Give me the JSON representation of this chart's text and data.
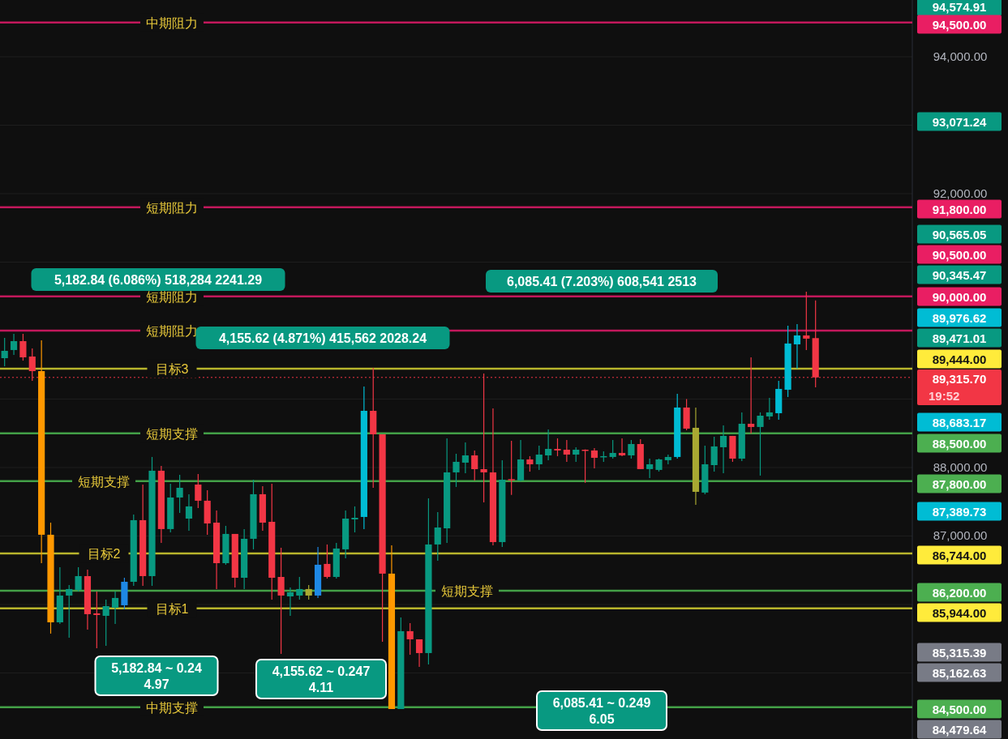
{
  "chart_data": {
    "type": "candlestick",
    "categories": [
      null,
      null,
      null,
      null,
      null,
      null,
      null,
      null,
      null,
      null,
      null,
      null,
      null,
      null,
      null,
      null,
      null,
      null,
      null,
      null,
      null,
      null,
      null,
      null,
      null,
      null,
      null,
      null,
      null,
      null,
      null,
      null,
      null,
      null,
      null,
      null,
      null,
      null,
      null,
      null,
      null,
      null,
      null,
      null,
      null,
      null,
      null,
      null,
      null,
      null,
      null,
      null,
      null,
      null,
      null,
      null,
      null,
      null,
      null,
      null,
      null,
      null,
      null,
      null,
      null,
      null,
      null,
      null,
      null,
      null,
      null,
      null,
      null,
      null,
      null,
      null,
      null,
      null,
      null,
      null,
      null,
      null,
      null,
      null,
      null,
      null,
      null,
      null,
      null,
      null,
      null,
      null,
      null,
      null,
      null,
      null,
      null,
      null,
      null
    ],
    "ohlc": [
      [
        89597,
        89893,
        89479,
        89704
      ],
      [
        89716,
        89952,
        89645,
        89846
      ],
      [
        89846,
        89952,
        89562,
        89609
      ],
      [
        89621,
        89739,
        89266,
        89408
      ],
      [
        89408,
        89858,
        86603,
        87018
      ],
      [
        87018,
        87195,
        85574,
        85739
      ],
      [
        85739,
        86544,
        85715,
        86130
      ],
      [
        86130,
        86284,
        85515,
        86225
      ],
      [
        86213,
        86544,
        86189,
        86414
      ],
      [
        86414,
        86509,
        85633,
        85858
      ],
      [
        85870,
        86189,
        85361,
        85846
      ],
      [
        85834,
        86071,
        85396,
        85976
      ],
      [
        85953,
        86189,
        85716,
        86095
      ],
      [
        85988,
        86390,
        85929,
        86331
      ],
      [
        86331,
        87314,
        86272,
        87231
      ],
      [
        87231,
        87751,
        86272,
        86414
      ],
      [
        86414,
        88154,
        86272,
        87953
      ],
      [
        87953,
        88024,
        86899,
        87101
      ],
      [
        87101,
        87763,
        87053,
        87562
      ],
      [
        87562,
        87893,
        87337,
        87704
      ],
      [
        87254,
        87610,
        87077,
        87432
      ],
      [
        87751,
        87905,
        87408,
        87515
      ],
      [
        87515,
        87669,
        87018,
        87183
      ],
      [
        87195,
        87373,
        86225,
        86603
      ],
      [
        86603,
        87148,
        86580,
        87030
      ],
      [
        87030,
        87030,
        86248,
        86390
      ],
      [
        86390,
        87101,
        86225,
        86959
      ],
      [
        86959,
        87822,
        86805,
        87610
      ],
      [
        87610,
        87728,
        87077,
        87195
      ],
      [
        87207,
        87763,
        86071,
        86390
      ],
      [
        86402,
        86828,
        85278,
        86130
      ],
      [
        86118,
        86249,
        85834,
        86177
      ],
      [
        86130,
        86402,
        86071,
        86225
      ],
      [
        86130,
        86284,
        86071,
        86225
      ],
      [
        86130,
        86840,
        86095,
        86580
      ],
      [
        86592,
        86876,
        86378,
        86402
      ],
      [
        86402,
        86899,
        86378,
        86817
      ],
      [
        86805,
        87373,
        86675,
        87254
      ],
      [
        87242,
        87432,
        87053,
        87266
      ],
      [
        87278,
        89183,
        87101,
        88828
      ],
      [
        88828,
        89456,
        87704,
        88485
      ],
      [
        88485,
        88485,
        85456,
        86450
      ],
      [
        86450,
        86864,
        84473,
        84473
      ],
      [
        84473,
        85811,
        84473,
        85610
      ],
      [
        85610,
        85728,
        85266,
        85491
      ],
      [
        85491,
        85491,
        85089,
        85290
      ],
      [
        85290,
        87550,
        85124,
        86876
      ],
      [
        86876,
        87349,
        86639,
        87124
      ],
      [
        87112,
        88426,
        86899,
        87929
      ],
      [
        87929,
        88201,
        87716,
        88083
      ],
      [
        88071,
        88367,
        87917,
        88177
      ],
      [
        88177,
        88249,
        87811,
        87976
      ],
      [
        87976,
        89373,
        87491,
        87929
      ],
      [
        87929,
        88864,
        86864,
        86911
      ],
      [
        86911,
        88107,
        86840,
        87822
      ],
      [
        87830,
        88390,
        87600,
        87820
      ],
      [
        87811,
        88402,
        87800,
        88118
      ],
      [
        88118,
        88166,
        87940,
        88047
      ],
      [
        88047,
        88320,
        87965,
        88189
      ],
      [
        88177,
        88556,
        88107,
        88272
      ],
      [
        88272,
        88426,
        88166,
        88249
      ],
      [
        88260,
        88402,
        88083,
        88189
      ],
      [
        88189,
        88296,
        88083,
        88260
      ],
      [
        88260,
        88265,
        87776,
        88250
      ],
      [
        88249,
        88284,
        87988,
        88142
      ],
      [
        88160,
        88237,
        88083,
        88166
      ],
      [
        88154,
        88402,
        88130,
        88213
      ],
      [
        88213,
        88426,
        88166,
        88177
      ],
      [
        88177,
        88402,
        88130,
        88343
      ],
      [
        88343,
        88414,
        87977,
        87977
      ],
      [
        87977,
        88130,
        87846,
        88047
      ],
      [
        87965,
        88130,
        87941,
        88118
      ],
      [
        88107,
        88189,
        88047,
        88154
      ],
      [
        88154,
        89075,
        88130,
        88876
      ],
      [
        88876,
        89000,
        88544,
        88568
      ],
      [
        88580,
        88876,
        87456,
        87645
      ],
      [
        87634,
        88320,
        87610,
        88047
      ],
      [
        88035,
        88450,
        87941,
        88308
      ],
      [
        88296,
        88616,
        87917,
        88462
      ],
      [
        88462,
        88462,
        88083,
        88130
      ],
      [
        88130,
        88805,
        88095,
        88639
      ],
      [
        88639,
        89610,
        88497,
        88592
      ],
      [
        88592,
        88805,
        87882,
        88757
      ],
      [
        88746,
        89018,
        88698,
        88805
      ],
      [
        88793,
        89266,
        88698,
        89148
      ],
      [
        89136,
        90071,
        89030,
        89811
      ],
      [
        89799,
        90095,
        89444,
        89929
      ],
      [
        89929,
        90568,
        89716,
        89882
      ],
      [
        89890,
        90440,
        89170,
        89316
      ],
      null,
      null,
      null,
      null,
      null,
      null,
      null,
      null,
      null,
      null
    ],
    "colors": [
      "#089981",
      "#089981",
      "#f23645",
      "#f23645",
      "#ff9800",
      "#ff9800",
      "#089981",
      "#089981",
      "#089981",
      "#f23645",
      "#f23645",
      "#089981",
      "#089981",
      "#1e88e5",
      "#089981",
      "#f23645",
      "#089981",
      "#f23645",
      "#089981",
      "#089981",
      "#089981",
      "#f23645",
      "#f23645",
      "#f23645",
      "#089981",
      "#f23645",
      "#089981",
      "#089981",
      "#f23645",
      "#f23645",
      "#f23645",
      "#089981",
      "#089981",
      "#a8a832",
      "#1e88e5",
      "#f23645",
      "#089981",
      "#089981",
      "#089981",
      "#00bcd4",
      "#f23645",
      "#f23645",
      "#ff9800",
      "#089981",
      "#f23645",
      "#f23645",
      "#089981",
      "#089981",
      "#089981",
      "#089981",
      "#089981",
      "#f23645",
      "#f23645",
      "#f23645",
      "#089981",
      "#f23645",
      "#089981",
      "#f23645",
      "#089981",
      "#089981",
      "#f23645",
      "#f23645",
      "#089981",
      "#f23645",
      "#f23645",
      "#089981",
      "#089981",
      "#f23645",
      "#089981",
      "#f23645",
      "#089981",
      "#089981",
      "#089981",
      "#00bcd4",
      "#f23645",
      "#a8a832",
      "#089981",
      "#089981",
      "#089981",
      "#f23645",
      "#089981",
      "#f23645",
      "#089981",
      "#089981",
      "#00bcd4",
      "#00bcd4",
      "#00bcd4",
      "#f23645",
      "#f23645",
      null,
      null,
      null,
      null,
      null,
      null,
      null,
      null,
      null,
      null
    ],
    "ylim": [
      84035,
      94828
    ],
    "yticks": [
      {
        "value": 85000,
        "label": null
      },
      {
        "value": 86000,
        "label": null
      },
      {
        "value": 87000,
        "label": "87,000.00"
      },
      {
        "value": 88000,
        "label": "88,000.00"
      },
      {
        "value": 89000,
        "label": null
      },
      {
        "value": 90000,
        "label": null
      },
      {
        "value": 91000,
        "label": null
      },
      {
        "value": 92000,
        "label": "92,000.00"
      },
      {
        "value": 93000,
        "label": null
      },
      {
        "value": 94000,
        "label": "94,000.00"
      }
    ],
    "grid": "y",
    "ref_lines": [
      {
        "axis": "y",
        "value": 94500,
        "label": "中期阻力",
        "color": "#c2185b"
      },
      {
        "axis": "y",
        "value": 91800,
        "label": "短期阻力",
        "color": "#c2185b"
      },
      {
        "axis": "y",
        "value": 90500,
        "label": "短期阻力",
        "color": "#c2185b"
      },
      {
        "axis": "y",
        "value": 90000,
        "label": "短期阻力",
        "color": "#c2185b"
      },
      {
        "axis": "y",
        "value": 89444,
        "label": "目标3",
        "color": "#b8b52c"
      },
      {
        "axis": "y",
        "value": 89315.7,
        "label": null,
        "color": "#f23645",
        "line_style": "dotted"
      },
      {
        "axis": "y",
        "value": 88500,
        "label": "短期支撑",
        "color": "#43a047"
      },
      {
        "axis": "y",
        "value": 87800,
        "label": "短期支撑",
        "color": "#43a047"
      },
      {
        "axis": "y",
        "value": 86744,
        "label": "目标2",
        "color": "#b8b52c"
      },
      {
        "axis": "y",
        "value": 86200,
        "label": "短期支撑",
        "color": "#43a047"
      },
      {
        "axis": "y",
        "value": 85944,
        "label": "目标1",
        "color": "#b8b52c"
      },
      {
        "axis": "y",
        "value": 84500,
        "label": "中期支撑",
        "color": "#43a047"
      }
    ],
    "annotations": [
      "5,182.84 (6.086%) 518,284 2241.29",
      "4,155.62 (4.871%) 415,562 2028.24",
      "6,085.41 (7.203%) 608,541 2513",
      "5,182.84 ~ 0.24\n4.97",
      "4,155.62 ~ 0.247\n4.11",
      "6,085.41 ~ 0.249\n6.05",
      "94,574.91",
      "94,500.00",
      "93,071.24",
      "91,800.00",
      "90,565.05",
      "90,500.00",
      "90,345.47",
      "90,000.00",
      "89,976.62",
      "89,471.01",
      "89,444.00",
      "89,315.70",
      "19:52",
      "88,683.17",
      "88,500.00",
      "87,800.00",
      "87,389.73",
      "86,744.00",
      "86,200.00",
      "85,944.00",
      "85,315.39",
      "85,162.63",
      "84,500.00",
      "84,479.64"
    ]
  }
}
